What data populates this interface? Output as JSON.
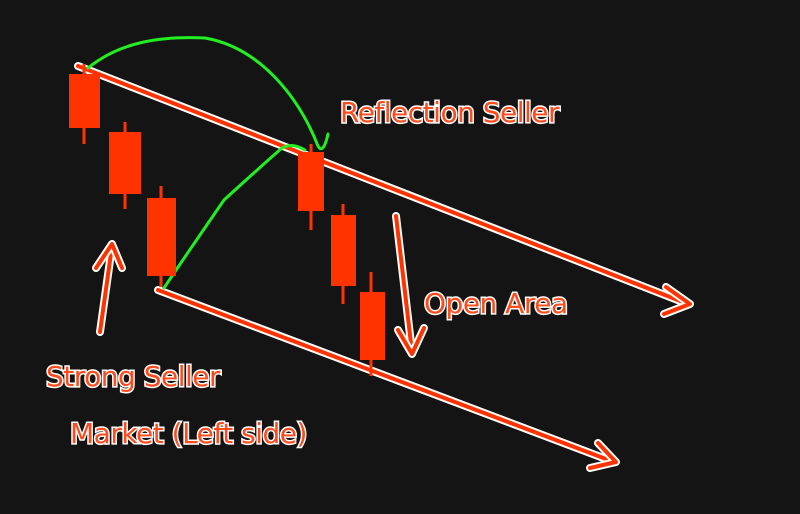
{
  "labels": {
    "reflection_seller": "Reflection Seller",
    "open_area": "Open Area",
    "strong_seller": "Strong Seller",
    "market_left_side": "Market (Left side)"
  },
  "colors": {
    "background": "#141414",
    "candle": "#ff3300",
    "annotation_fill": "#ff4a1c",
    "annotation_outline": "#ffffff",
    "trend_line": "#ff3300",
    "curve": "#22ee22"
  },
  "candles": [
    {
      "group": "left",
      "direction": "bearish"
    },
    {
      "group": "left",
      "direction": "bearish"
    },
    {
      "group": "left",
      "direction": "bearish"
    },
    {
      "group": "right",
      "direction": "bearish"
    },
    {
      "group": "right",
      "direction": "bearish"
    },
    {
      "group": "right",
      "direction": "bearish"
    }
  ],
  "icons": {
    "up_arrow": "arrow-up-icon",
    "down_arrow": "arrow-down-icon",
    "trend_arrowhead": "arrowhead-icon"
  }
}
